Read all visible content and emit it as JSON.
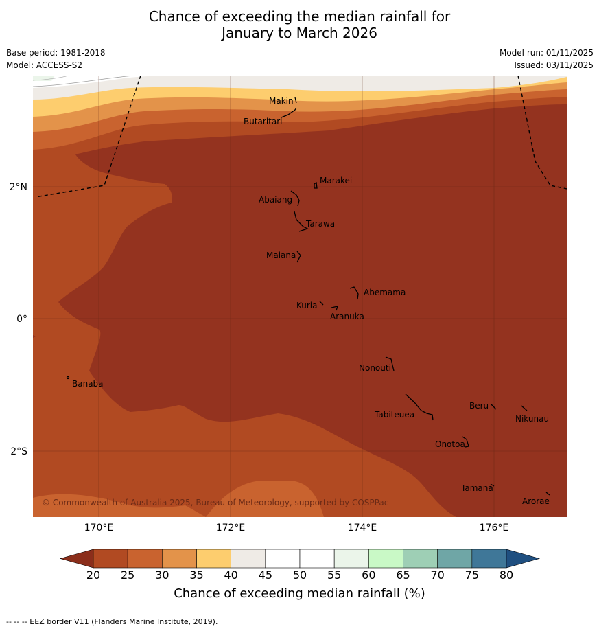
{
  "title_line1": "Chance of exceeding the median rainfall for",
  "title_line2": "January to March 2026",
  "base_period": "Base period: 1981-2018",
  "model": "Model: ACCESS-S2",
  "model_run": "Model run: 01/11/2025",
  "issued": "Issued: 03/11/2025",
  "copyright": "© Commonwealth of Australia 2025, Bureau of Meteorology, supported by COSPPac",
  "footnote": "--  --  -- EEZ border V11 (Flanders Marine Institute, 2019).",
  "axes": {
    "lon_ticks": [
      "170°E",
      "172°E",
      "174°E",
      "176°E"
    ],
    "lat_ticks": [
      "2°N",
      "0°",
      "2°S"
    ]
  },
  "islands": [
    {
      "name": "Makin"
    },
    {
      "name": "Butaritari"
    },
    {
      "name": "Marakei"
    },
    {
      "name": "Abaiang"
    },
    {
      "name": "Tarawa"
    },
    {
      "name": "Maiana"
    },
    {
      "name": "Abemama"
    },
    {
      "name": "Kuria"
    },
    {
      "name": "Aranuka"
    },
    {
      "name": "Nonouti"
    },
    {
      "name": "Banaba"
    },
    {
      "name": "Beru"
    },
    {
      "name": "Tabiteuea"
    },
    {
      "name": "Nikunau"
    },
    {
      "name": "Onotoa"
    },
    {
      "name": "Tamana"
    },
    {
      "name": "Arorae"
    }
  ],
  "colorbar": {
    "label": "Chance of exceeding median rainfall (%)",
    "ticks": [
      "20",
      "25",
      "30",
      "35",
      "40",
      "45",
      "50",
      "55",
      "60",
      "65",
      "70",
      "75",
      "80"
    ],
    "under_color": "#8b2e1b",
    "over_color": "#1f4f80",
    "bins": [
      {
        "range": "20-25",
        "color": "#b14a22"
      },
      {
        "range": "25-30",
        "color": "#c9632f"
      },
      {
        "range": "30-35",
        "color": "#e3934a"
      },
      {
        "range": "35-40",
        "color": "#fdcd6e"
      },
      {
        "range": "40-45",
        "color": "#efebe6"
      },
      {
        "range": "45-50",
        "color": "#ffffff"
      },
      {
        "range": "50-55",
        "color": "#ffffff"
      },
      {
        "range": "55-60",
        "color": "#ebf5ea"
      },
      {
        "range": "60-65",
        "color": "#c9f9c6"
      },
      {
        "range": "65-70",
        "color": "#9ecfb5"
      },
      {
        "range": "70-75",
        "color": "#6fa6a6"
      },
      {
        "range": "75-80",
        "color": "#3f7798"
      }
    ]
  }
}
